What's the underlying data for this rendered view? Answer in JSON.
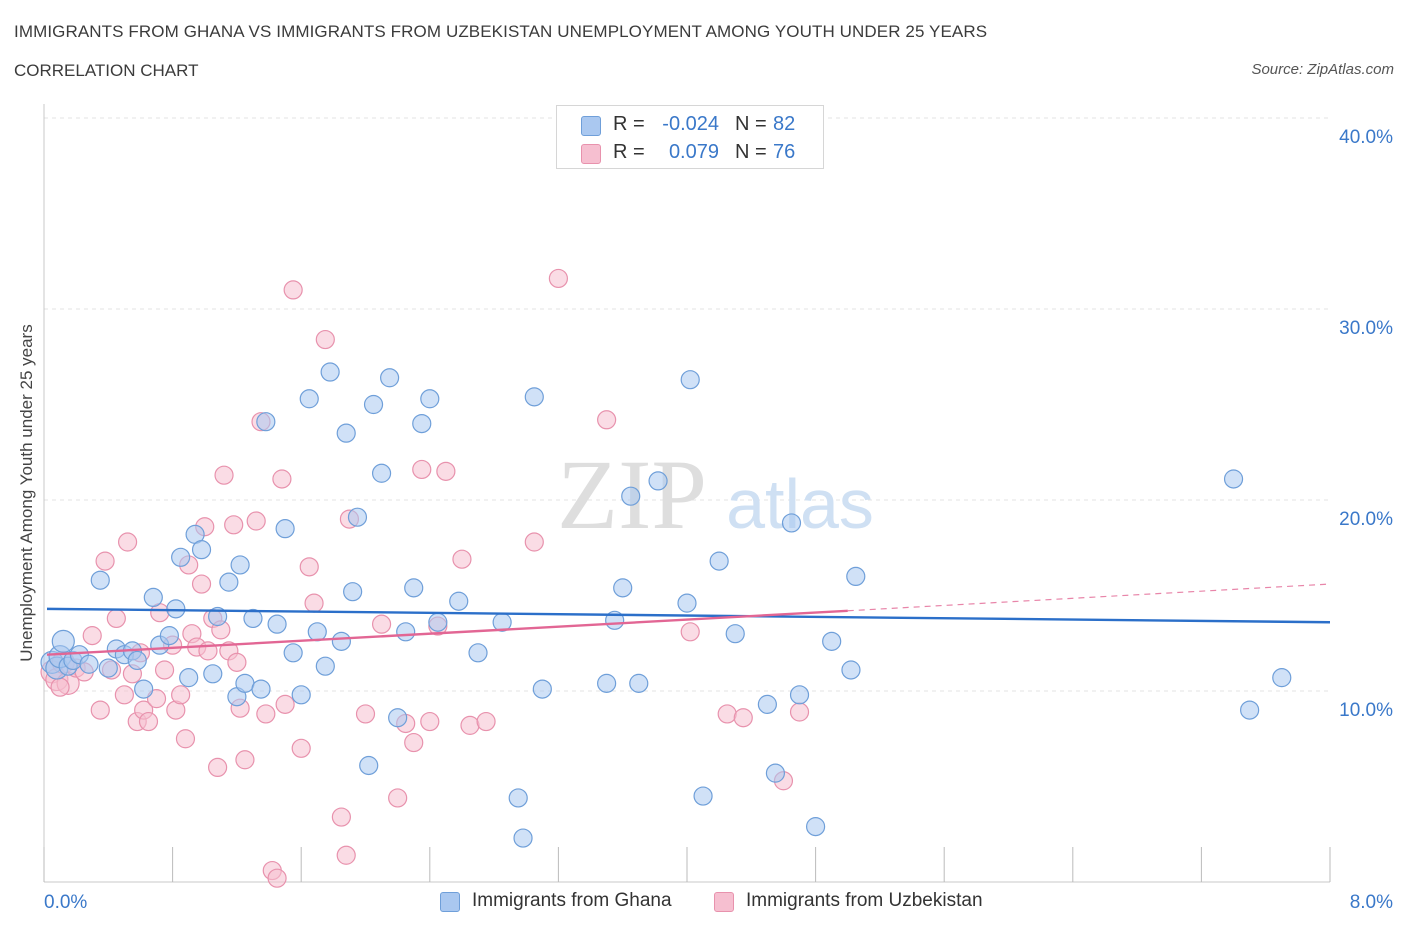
{
  "header": {
    "title": "IMMIGRANTS FROM GHANA VS IMMIGRANTS FROM UZBEKISTAN UNEMPLOYMENT AMONG YOUTH UNDER 25 YEARS",
    "subtitle": "CORRELATION CHART",
    "source": "Source: ZipAtlas.com"
  },
  "colors": {
    "ghana_fill": "#aac8f0",
    "ghana_stroke": "#6f9fd9",
    "ghana_line": "#2b6fc9",
    "uzbek_fill": "#f6bfd0",
    "uzbek_stroke": "#e892ad",
    "uzbek_line": "#e26694",
    "tick_label": "#3a78c9",
    "grid": "#e3e3e3"
  },
  "legend": {
    "rows": [
      {
        "label": "R =",
        "r": "-0.024",
        "n_label": "N =",
        "n": "82"
      },
      {
        "label": "R =",
        "r": "0.079",
        "n_label": "N =",
        "n": "76"
      }
    ]
  },
  "watermark": {
    "zip": "ZIP",
    "atlas": "atlas"
  },
  "chart_data": {
    "type": "scatter",
    "title": "IMMIGRANTS FROM GHANA VS IMMIGRANTS FROM UZBEKISTAN UNEMPLOYMENT AMONG YOUTH UNDER 25 YEARS",
    "xlabel": "",
    "ylabel": "Unemployment Among Youth under 25 years",
    "xlim": [
      0,
      8
    ],
    "ylim": [
      0,
      40
    ],
    "x_tick_labels": [
      "0.0%",
      "8.0%"
    ],
    "y_ticks": [
      10,
      20,
      30,
      40
    ],
    "y_tick_labels": [
      "10.0%",
      "20.0%",
      "30.0%",
      "40.0%"
    ],
    "grid": true,
    "legend_position": "top-center",
    "series": [
      {
        "name": "Immigrants from Ghana",
        "points": [
          [
            0.05,
            11.5
          ],
          [
            0.08,
            11.2
          ],
          [
            0.1,
            11.8
          ],
          [
            0.12,
            12.6
          ],
          [
            0.15,
            11.3
          ],
          [
            0.18,
            11.6
          ],
          [
            0.22,
            11.9
          ],
          [
            0.28,
            11.4
          ],
          [
            0.35,
            15.8
          ],
          [
            0.4,
            11.2
          ],
          [
            0.45,
            12.2
          ],
          [
            0.5,
            11.9
          ],
          [
            0.55,
            12.1
          ],
          [
            0.58,
            11.6
          ],
          [
            0.62,
            10.1
          ],
          [
            0.68,
            14.9
          ],
          [
            0.72,
            12.4
          ],
          [
            0.78,
            12.9
          ],
          [
            0.82,
            14.3
          ],
          [
            0.85,
            17.0
          ],
          [
            0.9,
            10.7
          ],
          [
            0.94,
            18.2
          ],
          [
            0.98,
            17.4
          ],
          [
            1.05,
            10.9
          ],
          [
            1.08,
            13.9
          ],
          [
            1.15,
            15.7
          ],
          [
            1.2,
            9.7
          ],
          [
            1.22,
            16.6
          ],
          [
            1.25,
            10.4
          ],
          [
            1.3,
            13.8
          ],
          [
            1.35,
            10.1
          ],
          [
            1.38,
            24.1
          ],
          [
            1.45,
            13.5
          ],
          [
            1.5,
            18.5
          ],
          [
            1.55,
            12.0
          ],
          [
            1.6,
            9.8
          ],
          [
            1.65,
            25.3
          ],
          [
            1.7,
            13.1
          ],
          [
            1.75,
            11.3
          ],
          [
            1.78,
            26.7
          ],
          [
            1.85,
            12.6
          ],
          [
            1.88,
            23.5
          ],
          [
            1.92,
            15.2
          ],
          [
            1.95,
            19.1
          ],
          [
            2.05,
            25.0
          ],
          [
            2.1,
            21.4
          ],
          [
            2.15,
            26.4
          ],
          [
            2.2,
            8.6
          ],
          [
            2.25,
            13.1
          ],
          [
            2.3,
            15.4
          ],
          [
            2.35,
            24.0
          ],
          [
            2.4,
            25.3
          ],
          [
            2.45,
            13.6
          ],
          [
            2.58,
            14.7
          ],
          [
            2.7,
            12.0
          ],
          [
            2.85,
            13.6
          ],
          [
            2.95,
            4.4
          ],
          [
            2.98,
            2.3
          ],
          [
            3.05,
            25.4
          ],
          [
            3.1,
            10.1
          ],
          [
            3.5,
            10.4
          ],
          [
            3.55,
            13.7
          ],
          [
            3.6,
            15.4
          ],
          [
            3.65,
            20.2
          ],
          [
            3.7,
            10.4
          ],
          [
            3.82,
            21.0
          ],
          [
            4.0,
            14.6
          ],
          [
            4.02,
            26.3
          ],
          [
            4.1,
            4.5
          ],
          [
            4.2,
            16.8
          ],
          [
            4.3,
            13.0
          ],
          [
            4.5,
            9.3
          ],
          [
            4.55,
            5.7
          ],
          [
            4.65,
            18.8
          ],
          [
            4.7,
            9.8
          ],
          [
            4.8,
            2.9
          ],
          [
            4.9,
            12.6
          ],
          [
            5.02,
            11.1
          ],
          [
            5.05,
            16.0
          ],
          [
            7.4,
            21.1
          ],
          [
            7.5,
            9.0
          ],
          [
            7.7,
            10.7
          ],
          [
            2.02,
            6.1
          ]
        ],
        "trend": {
          "x": [
            0,
            8
          ],
          "y": [
            14.3,
            13.6
          ]
        }
      },
      {
        "name": "Immigrants from Uzbekistan",
        "points": [
          [
            0.05,
            11.0
          ],
          [
            0.08,
            10.6
          ],
          [
            0.12,
            11.5
          ],
          [
            0.15,
            10.4
          ],
          [
            0.2,
            11.2
          ],
          [
            0.25,
            11.0
          ],
          [
            0.3,
            12.9
          ],
          [
            0.35,
            9.0
          ],
          [
            0.38,
            16.8
          ],
          [
            0.42,
            11.1
          ],
          [
            0.45,
            13.8
          ],
          [
            0.5,
            9.8
          ],
          [
            0.52,
            17.8
          ],
          [
            0.58,
            8.4
          ],
          [
            0.6,
            12.0
          ],
          [
            0.62,
            9.0
          ],
          [
            0.65,
            8.4
          ],
          [
            0.7,
            9.6
          ],
          [
            0.72,
            14.1
          ],
          [
            0.75,
            11.1
          ],
          [
            0.8,
            12.4
          ],
          [
            0.82,
            9.0
          ],
          [
            0.85,
            9.8
          ],
          [
            0.88,
            7.5
          ],
          [
            0.9,
            16.6
          ],
          [
            0.92,
            13.0
          ],
          [
            0.95,
            12.3
          ],
          [
            0.98,
            15.6
          ],
          [
            1.0,
            18.6
          ],
          [
            1.02,
            12.1
          ],
          [
            1.05,
            13.8
          ],
          [
            1.08,
            6.0
          ],
          [
            1.12,
            21.3
          ],
          [
            1.15,
            12.1
          ],
          [
            1.18,
            18.7
          ],
          [
            1.2,
            11.5
          ],
          [
            1.22,
            9.1
          ],
          [
            1.25,
            6.4
          ],
          [
            1.32,
            18.9
          ],
          [
            1.35,
            24.1
          ],
          [
            1.38,
            8.8
          ],
          [
            1.42,
            0.6
          ],
          [
            1.45,
            0.2
          ],
          [
            1.48,
            21.1
          ],
          [
            1.5,
            9.3
          ],
          [
            1.55,
            31.0
          ],
          [
            1.6,
            7.0
          ],
          [
            1.65,
            16.5
          ],
          [
            1.68,
            14.6
          ],
          [
            1.75,
            28.4
          ],
          [
            1.85,
            3.4
          ],
          [
            1.88,
            1.4
          ],
          [
            1.9,
            19.0
          ],
          [
            2.0,
            8.8
          ],
          [
            2.2,
            4.4
          ],
          [
            2.25,
            8.3
          ],
          [
            2.3,
            7.3
          ],
          [
            2.35,
            21.6
          ],
          [
            2.4,
            8.4
          ],
          [
            2.45,
            13.4
          ],
          [
            2.5,
            21.5
          ],
          [
            2.6,
            16.9
          ],
          [
            2.65,
            8.2
          ],
          [
            2.75,
            8.4
          ],
          [
            3.05,
            17.8
          ],
          [
            3.2,
            31.6
          ],
          [
            3.5,
            24.2
          ],
          [
            4.02,
            13.1
          ],
          [
            4.25,
            8.8
          ],
          [
            4.35,
            8.6
          ],
          [
            4.6,
            5.3
          ],
          [
            4.7,
            8.9
          ],
          [
            0.1,
            10.2
          ],
          [
            0.55,
            10.9
          ],
          [
            1.1,
            13.2
          ],
          [
            2.1,
            13.5
          ]
        ],
        "trend": {
          "x": [
            0,
            5
          ],
          "y": [
            11.9,
            14.2
          ]
        },
        "trend_extension": {
          "x": [
            5,
            8
          ],
          "y": [
            14.2,
            15.6
          ]
        }
      }
    ]
  }
}
